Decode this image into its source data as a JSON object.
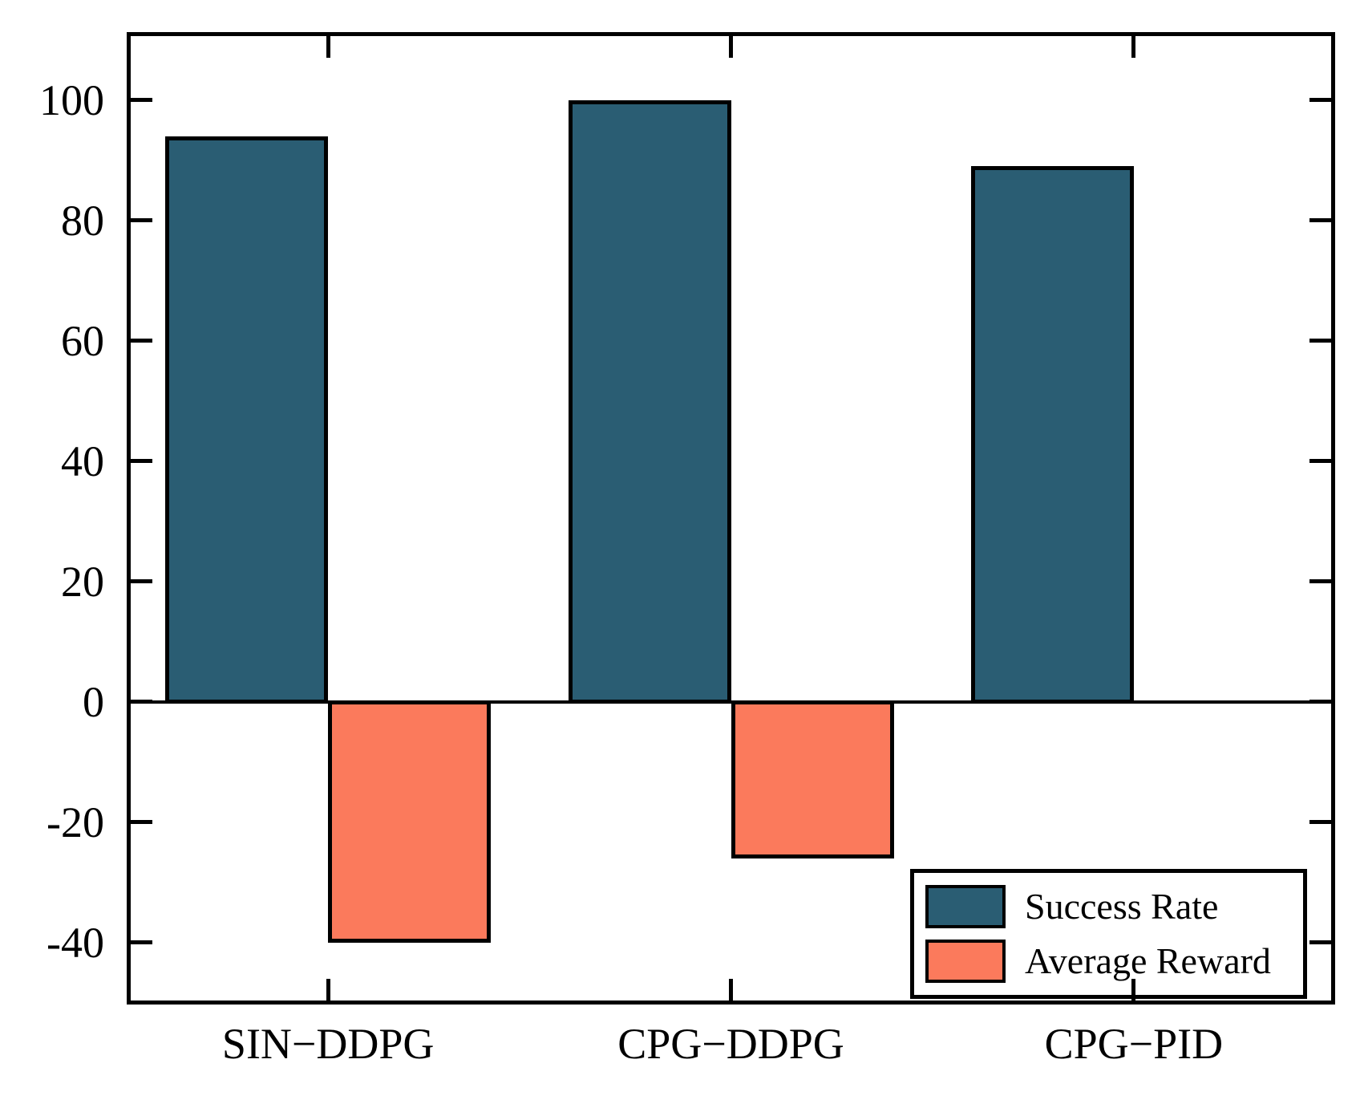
{
  "chart_data": {
    "type": "bar",
    "categories": [
      "SIN−DDPG",
      "CPG−DDPG",
      "CPG−PID"
    ],
    "series": [
      {
        "name": "Success Rate",
        "color": "#2a5d73",
        "values": [
          94,
          100,
          89
        ]
      },
      {
        "name": "Average Reward",
        "color": "#fb7a5c",
        "values": [
          -40,
          -26,
          null
        ]
      }
    ],
    "title": "",
    "xlabel": "",
    "ylabel": "",
    "ylim": [
      -50.3,
      111.3
    ],
    "yticks": [
      100,
      80,
      60,
      40,
      20,
      0,
      -20,
      -40
    ],
    "ytick_labels": [
      "100",
      "80",
      "60",
      "40",
      "20",
      "0",
      "-20",
      "-40"
    ],
    "grid": false,
    "zero_baseline": true,
    "bar_edge_color": "#000000",
    "legend_position": "lower right"
  }
}
